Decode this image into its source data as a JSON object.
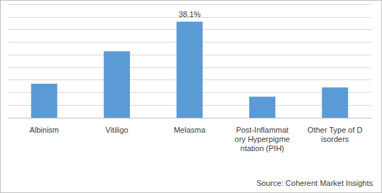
{
  "chart_data": {
    "type": "bar",
    "categories": [
      "Albinism",
      "Vitiligo",
      "Melasma",
      "Post-Inflammatory Hyperpigmentation (PIH)",
      "Other Type of Disorders"
    ],
    "values": [
      13.5,
      26.4,
      38.1,
      8.4,
      12.0
    ],
    "value_labels": [
      null,
      null,
      "38.1%",
      null,
      null
    ],
    "color": "#5b9bd5",
    "ylim": [
      0,
      45
    ],
    "yticks": [
      0,
      5,
      10,
      15,
      20,
      25,
      30,
      35,
      40,
      45
    ],
    "grid": true,
    "tick_labels": "x",
    "annotations": [
      "Source: Coherent Market Insights"
    ]
  }
}
